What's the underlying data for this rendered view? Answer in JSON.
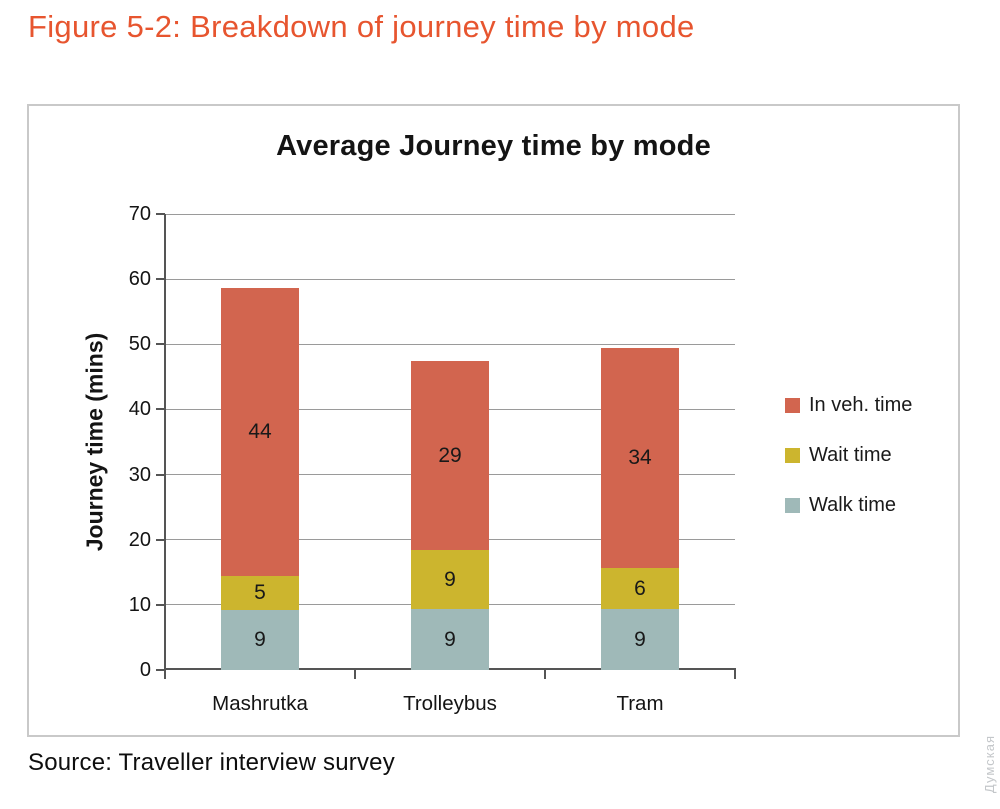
{
  "page": {
    "title": "Figure 5-2: Breakdown of journey time by mode",
    "source": "Source: Traveller interview survey",
    "watermark": "Думская",
    "accent_color": "#e7552f"
  },
  "chart_data": {
    "type": "bar",
    "stacked": true,
    "title": "Average Journey time by mode",
    "xlabel": "",
    "ylabel": "Journey time (mins)",
    "categories": [
      "Mashrutka",
      "Trolleybus",
      "Tram"
    ],
    "series": [
      {
        "name": "Walk time",
        "color": "#9fb9b8",
        "values": [
          9,
          9,
          9
        ],
        "draw_values": [
          9.2,
          9.3,
          9.3
        ]
      },
      {
        "name": "Wait time",
        "color": "#ccb52e",
        "values": [
          5,
          9,
          6
        ],
        "draw_values": [
          5.3,
          9.1,
          6.3
        ]
      },
      {
        "name": "In veh. time",
        "color": "#d2654f",
        "values": [
          44,
          29,
          34
        ],
        "draw_values": [
          44.2,
          29.0,
          33.9
        ]
      }
    ],
    "totals_estimated": [
      58.7,
      47.4,
      49.5
    ],
    "ylim": [
      0,
      70
    ],
    "ytick_step": 10,
    "grid": true,
    "legend_position": "right",
    "legend_order_top_to_bottom": [
      "In veh. time",
      "Wait time",
      "Walk time"
    ]
  }
}
